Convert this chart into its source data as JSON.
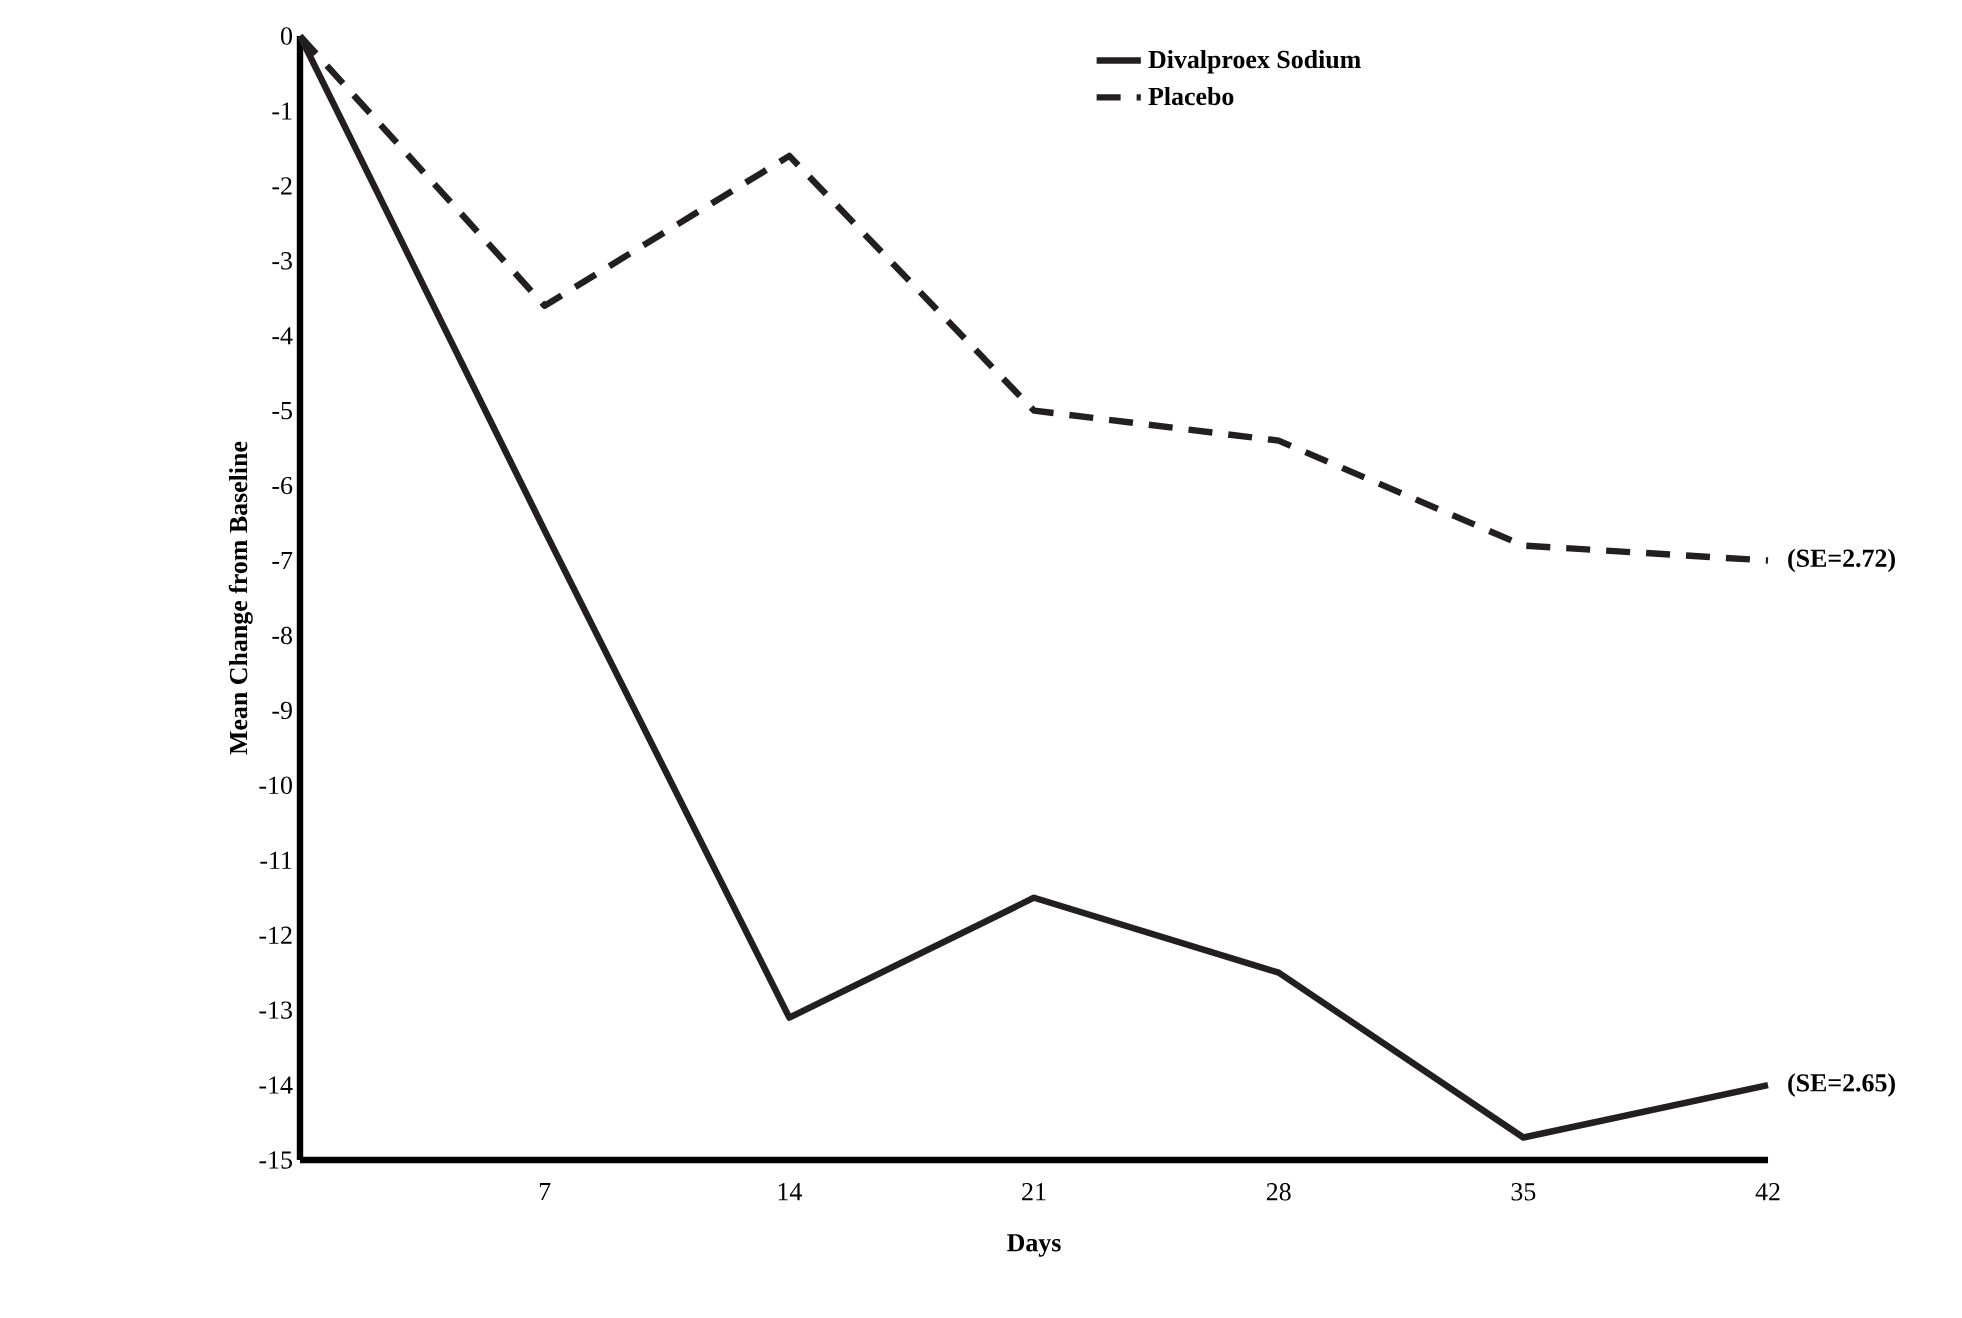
{
  "chart_data": {
    "type": "line",
    "xlabel": "Days",
    "ylabel": "Mean Change from Baseline",
    "x": [
      0,
      7,
      14,
      21,
      28,
      35,
      42
    ],
    "series": [
      {
        "name": "Divalproex Sodium",
        "color": "#231f20",
        "line_style": "solid",
        "values": [
          0,
          -6.6,
          -13.1,
          -11.5,
          -12.5,
          -14.7,
          -14.0
        ]
      },
      {
        "name": "Placebo",
        "color": "#231f20",
        "line_style": "dashed",
        "values": [
          0,
          -3.6,
          -1.6,
          -5.0,
          -5.4,
          -6.8,
          -7.0
        ]
      }
    ],
    "xlim": [
      0,
      42
    ],
    "xticks": [
      7,
      14,
      21,
      28,
      35,
      42
    ],
    "ylim": [
      -15,
      0
    ],
    "yticks": [
      -15,
      -14,
      -13,
      -12,
      -11,
      -10,
      -9,
      -8,
      -7,
      -6,
      -5,
      -4,
      -3,
      -2,
      -1,
      0
    ],
    "legend": "top right",
    "marker": "none",
    "annotations": [
      {
        "text": "(SE=2.72)",
        "x": 42,
        "y": -7.0
      },
      {
        "text": "(SE=2.65)",
        "x": 42,
        "y": -14.0
      }
    ]
  }
}
